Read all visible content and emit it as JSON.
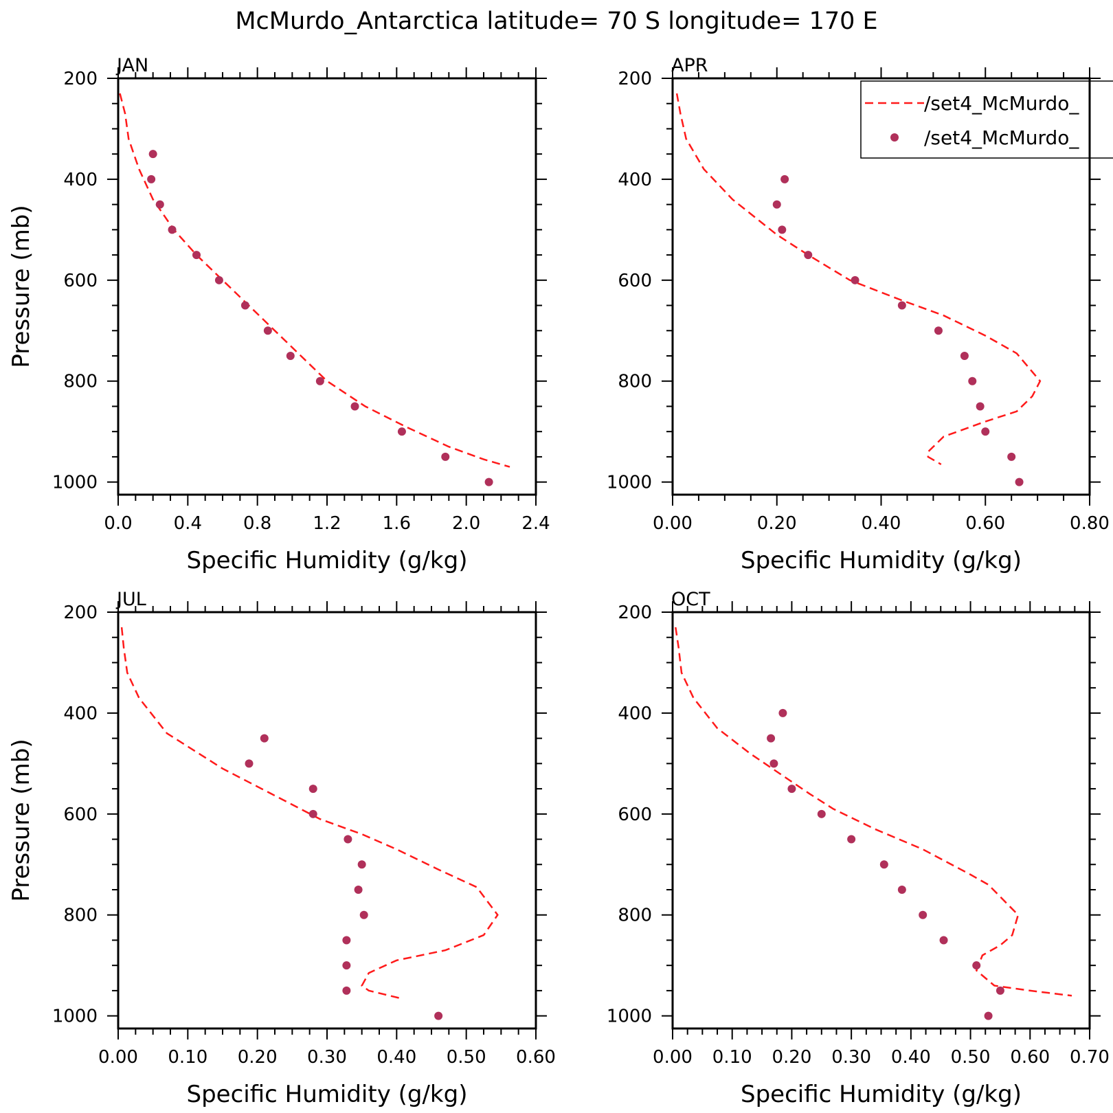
{
  "figure": {
    "title": "McMurdo_Antarctica  latitude= 70 S longitude= 170 E"
  },
  "legend": {
    "entries": [
      {
        "label": "/set4_McMurdo_",
        "style": "dashed-line",
        "color": "#ff1a1a"
      },
      {
        "label": "/set4_McMurdo_",
        "style": "dot",
        "color": "#b0305a"
      }
    ],
    "placement": "top-right of APR panel, clipped at page edge"
  },
  "colors": {
    "model_line": "#ff1a1a",
    "obs_points": "#b0305a",
    "axes": "#000000"
  },
  "chart_data": [
    {
      "type": "line+scatter",
      "panel": "JAN",
      "xlabel": "Specific Humidity (g/kg)",
      "ylabel": "Pressure (mb)",
      "xlim": [
        0,
        2.4
      ],
      "xticks": [
        0.0,
        0.4,
        0.8,
        1.2,
        1.6,
        2.0,
        2.4
      ],
      "xtick_labels": [
        "0.0",
        "0.4",
        "0.8",
        "1.2",
        "1.6",
        "2.0",
        "2.4"
      ],
      "ylim": [
        200,
        1025
      ],
      "yaxis_inverted": true,
      "yticks": [
        200,
        400,
        600,
        800,
        1000
      ],
      "ytick_labels": [
        "200",
        "400",
        "600",
        "800",
        "1000"
      ],
      "series": [
        {
          "style": "dashed-line",
          "points": [
            [
              0.01,
              230
            ],
            [
              0.04,
              270
            ],
            [
              0.06,
              320
            ],
            [
              0.12,
              380
            ],
            [
              0.2,
              440
            ],
            [
              0.32,
              500
            ],
            [
              0.45,
              550
            ],
            [
              0.6,
              600
            ],
            [
              0.75,
              650
            ],
            [
              0.9,
              700
            ],
            [
              1.05,
              750
            ],
            [
              1.2,
              800
            ],
            [
              1.42,
              850
            ],
            [
              1.65,
              890
            ],
            [
              1.9,
              930
            ],
            [
              2.1,
              955
            ],
            [
              2.25,
              970
            ]
          ]
        },
        {
          "style": "dots",
          "points": [
            [
              0.2,
              350
            ],
            [
              0.19,
              400
            ],
            [
              0.24,
              450
            ],
            [
              0.31,
              500
            ],
            [
              0.45,
              550
            ],
            [
              0.58,
              600
            ],
            [
              0.73,
              650
            ],
            [
              0.86,
              700
            ],
            [
              0.99,
              750
            ],
            [
              1.16,
              800
            ],
            [
              1.36,
              850
            ],
            [
              1.63,
              900
            ],
            [
              1.88,
              950
            ],
            [
              2.13,
              1000
            ]
          ]
        }
      ]
    },
    {
      "type": "line+scatter",
      "panel": "APR",
      "xlabel": "Specific Humidity (g/kg)",
      "ylabel": "",
      "xlim": [
        0,
        0.8
      ],
      "xticks": [
        0.0,
        0.2,
        0.4,
        0.6,
        0.8
      ],
      "xtick_labels": [
        "0.00",
        "0.20",
        "0.40",
        "0.60",
        "0.80"
      ],
      "ylim": [
        200,
        1025
      ],
      "yaxis_inverted": true,
      "yticks": [
        200,
        400,
        600,
        800,
        1000
      ],
      "ytick_labels": [
        "200",
        "400",
        "600",
        "800",
        "1000"
      ],
      "series": [
        {
          "style": "dashed-line",
          "points": [
            [
              0.008,
              230
            ],
            [
              0.015,
              270
            ],
            [
              0.026,
              320
            ],
            [
              0.06,
              380
            ],
            [
              0.115,
              440
            ],
            [
              0.2,
              510
            ],
            [
              0.26,
              550
            ],
            [
              0.34,
              600
            ],
            [
              0.44,
              640
            ],
            [
              0.52,
              670
            ],
            [
              0.6,
              710
            ],
            [
              0.66,
              745
            ],
            [
              0.705,
              800
            ],
            [
              0.69,
              830
            ],
            [
              0.66,
              860
            ],
            [
              0.6,
              880
            ],
            [
              0.52,
              910
            ],
            [
              0.49,
              940
            ],
            [
              0.49,
              950
            ],
            [
              0.515,
              965
            ]
          ]
        },
        {
          "style": "dots",
          "points": [
            [
              0.215,
              400
            ],
            [
              0.2,
              450
            ],
            [
              0.21,
              500
            ],
            [
              0.26,
              550
            ],
            [
              0.35,
              600
            ],
            [
              0.44,
              650
            ],
            [
              0.51,
              700
            ],
            [
              0.56,
              750
            ],
            [
              0.575,
              800
            ],
            [
              0.59,
              850
            ],
            [
              0.6,
              900
            ],
            [
              0.65,
              950
            ],
            [
              0.665,
              1000
            ]
          ]
        }
      ]
    },
    {
      "type": "line+scatter",
      "panel": "JUL",
      "xlabel": "Specific Humidity (g/kg)",
      "ylabel": "Pressure (mb)",
      "xlim": [
        0,
        0.6
      ],
      "xticks": [
        0.0,
        0.1,
        0.2,
        0.3,
        0.4,
        0.5,
        0.6
      ],
      "xtick_labels": [
        "0.00",
        "0.10",
        "0.20",
        "0.30",
        "0.40",
        "0.50",
        "0.60"
      ],
      "ylim": [
        200,
        1025
      ],
      "yaxis_inverted": true,
      "yticks": [
        200,
        400,
        600,
        800,
        1000
      ],
      "ytick_labels": [
        "200",
        "400",
        "600",
        "800",
        "1000"
      ],
      "series": [
        {
          "style": "dashed-line",
          "points": [
            [
              0.005,
              230
            ],
            [
              0.008,
              270
            ],
            [
              0.013,
              320
            ],
            [
              0.03,
              370
            ],
            [
              0.07,
              440
            ],
            [
              0.15,
              510
            ],
            [
              0.22,
              560
            ],
            [
              0.29,
              610
            ],
            [
              0.35,
              640
            ],
            [
              0.4,
              670
            ],
            [
              0.46,
              710
            ],
            [
              0.515,
              745
            ],
            [
              0.545,
              800
            ],
            [
              0.525,
              840
            ],
            [
              0.47,
              870
            ],
            [
              0.4,
              890
            ],
            [
              0.36,
              915
            ],
            [
              0.35,
              940
            ],
            [
              0.36,
              950
            ],
            [
              0.405,
              965
            ]
          ]
        },
        {
          "style": "dots",
          "points": [
            [
              0.21,
              450
            ],
            [
              0.188,
              500
            ],
            [
              0.28,
              550
            ],
            [
              0.28,
              600
            ],
            [
              0.33,
              650
            ],
            [
              0.35,
              700
            ],
            [
              0.345,
              750
            ],
            [
              0.353,
              800
            ],
            [
              0.328,
              850
            ],
            [
              0.328,
              900
            ],
            [
              0.328,
              950
            ],
            [
              0.46,
              1000
            ]
          ]
        }
      ]
    },
    {
      "type": "line+scatter",
      "panel": "OCT",
      "xlabel": "Specific Humidity (g/kg)",
      "ylabel": "",
      "xlim": [
        0,
        0.7
      ],
      "xticks": [
        0.0,
        0.1,
        0.2,
        0.3,
        0.4,
        0.5,
        0.6,
        0.7
      ],
      "xtick_labels": [
        "0.00",
        "0.10",
        "0.20",
        "0.30",
        "0.40",
        "0.50",
        "0.60",
        "0.70"
      ],
      "ylim": [
        200,
        1025
      ],
      "yaxis_inverted": true,
      "yticks": [
        200,
        400,
        600,
        800,
        1000
      ],
      "ytick_labels": [
        "200",
        "400",
        "600",
        "800",
        "1000"
      ],
      "series": [
        {
          "style": "dashed-line",
          "points": [
            [
              0.005,
              230
            ],
            [
              0.01,
              270
            ],
            [
              0.015,
              320
            ],
            [
              0.035,
              370
            ],
            [
              0.075,
              430
            ],
            [
              0.13,
              480
            ],
            [
              0.18,
              520
            ],
            [
              0.23,
              560
            ],
            [
              0.27,
              590
            ],
            [
              0.34,
              630
            ],
            [
              0.42,
              670
            ],
            [
              0.5,
              720
            ],
            [
              0.53,
              740
            ],
            [
              0.58,
              800
            ],
            [
              0.57,
              840
            ],
            [
              0.55,
              860
            ],
            [
              0.52,
              880
            ],
            [
              0.51,
              910
            ],
            [
              0.54,
              940
            ],
            [
              0.6,
              950
            ],
            [
              0.67,
              960
            ]
          ]
        },
        {
          "style": "dots",
          "points": [
            [
              0.185,
              400
            ],
            [
              0.165,
              450
            ],
            [
              0.17,
              500
            ],
            [
              0.2,
              550
            ],
            [
              0.25,
              600
            ],
            [
              0.3,
              650
            ],
            [
              0.355,
              700
            ],
            [
              0.385,
              750
            ],
            [
              0.42,
              800
            ],
            [
              0.455,
              850
            ],
            [
              0.51,
              900
            ],
            [
              0.55,
              950
            ],
            [
              0.53,
              1000
            ]
          ]
        }
      ]
    }
  ]
}
